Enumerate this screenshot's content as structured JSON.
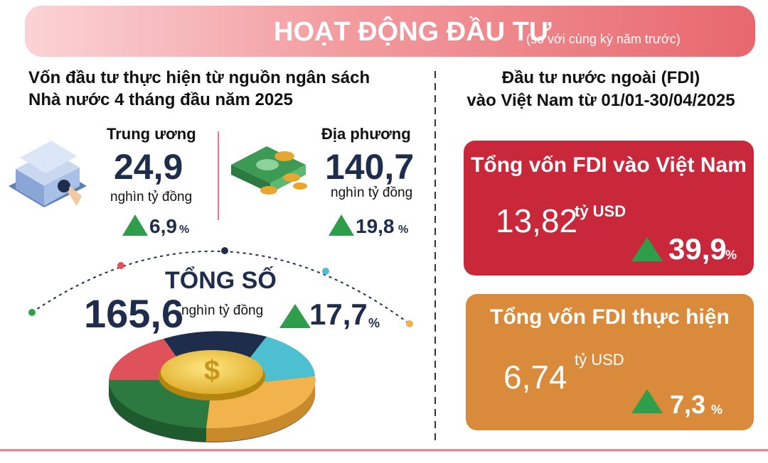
{
  "header": {
    "title": "HOẠT ĐỘNG ĐẦU TƯ",
    "subtitle": "(so với cùng kỳ năm trước)"
  },
  "budget": {
    "title": [
      "Vốn đầu tư thực hiện từ nguồn ngân sách",
      "Nhà nước 4 tháng đầu năm 2025"
    ],
    "central": {
      "label": "Trung ương",
      "value": "24,9",
      "unit": "nghìn tỷ đồng",
      "growth": "6,9",
      "growth_unit": "%"
    },
    "local": {
      "label": "Địa phương",
      "value": "140,7",
      "unit": "nghìn tỷ đồng",
      "growth": "19,8",
      "growth_unit": "%"
    },
    "total": {
      "label": "TỔNG SỐ",
      "value": "165,6",
      "unit": "nghìn tỷ đồng",
      "growth": "17,7",
      "growth_unit": "%"
    }
  },
  "fdi": {
    "title": [
      "Đầu tư nước ngoài (FDI)",
      "vào Việt Nam từ 01/01-30/04/2025"
    ],
    "registered": {
      "label": "Tổng vốn FDI vào Việt Nam",
      "value": "13,82",
      "unit": "tỷ USD",
      "growth": "39,9",
      "growth_unit": "%"
    },
    "disbursed": {
      "label": "Tổng vốn FDI thực hiện",
      "value": "6,74",
      "unit": "tỷ USD",
      "growth": "7,3",
      "growth_unit": "%"
    }
  }
}
